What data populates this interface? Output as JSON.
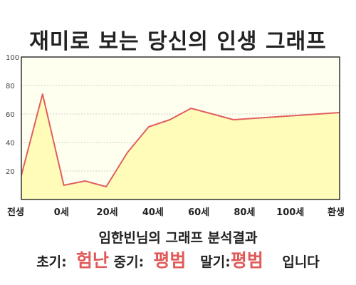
{
  "title": "재미로 보는 당신의 인생 그래프",
  "chart_data": {
    "type": "area",
    "x_tick_labels": [
      "전생",
      "0세",
      "20세",
      "40세",
      "60세",
      "80세",
      "100세",
      "환생"
    ],
    "x": [
      0,
      1,
      2,
      3,
      4,
      5,
      6,
      7,
      8,
      9,
      10,
      11,
      12,
      13,
      14,
      15
    ],
    "values": [
      17,
      74,
      10,
      13,
      9,
      33,
      51,
      56,
      64,
      60,
      56,
      57,
      58,
      59,
      60,
      61
    ],
    "y_ticks": [
      20,
      40,
      60,
      80,
      100
    ],
    "ylim": [
      0,
      100
    ],
    "grid": true,
    "line_color": "#e06060",
    "fill_color": "#fffbb8",
    "plot_bg": "#fffff0"
  },
  "result": {
    "title": "임한빈님의 그래프 분석결과",
    "early_label": "초기:",
    "early_value": "험난",
    "middle_label": "중기:",
    "middle_value": "평범",
    "late_label": "말기:",
    "late_value": "평범",
    "suffix": "입니다"
  }
}
